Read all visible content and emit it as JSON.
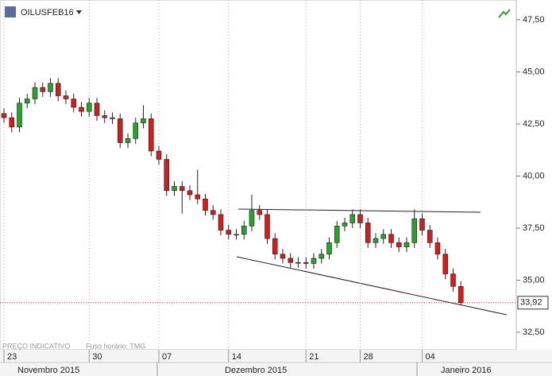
{
  "chart_data": {
    "type": "candlestick",
    "title": "OILUSFEB16",
    "footer": "PREÇO INDICATIVO",
    "timezone": "Fuso horário: TMG",
    "categories": [
      "23",
      null,
      null,
      null,
      null,
      null,
      null,
      null,
      null,
      null,
      null,
      "30",
      null,
      null,
      null,
      null,
      null,
      null,
      null,
      null,
      "07",
      null,
      null,
      null,
      null,
      null,
      null,
      null,
      null,
      "14",
      null,
      null,
      null,
      null,
      null,
      null,
      null,
      null,
      null,
      "21",
      null,
      null,
      null,
      null,
      null,
      null,
      "28",
      null,
      null,
      null,
      null,
      null,
      null,
      null,
      "04",
      null,
      null,
      null,
      null,
      null
    ],
    "months": [
      "Novembro 2015",
      "Dezembro 2015",
      "Janeiro 2016"
    ],
    "open": [
      43.0,
      42.8,
      42.35,
      43.5,
      43.7,
      44.25,
      44.05,
      44.45,
      43.85,
      43.7,
      43.3,
      43.1,
      43.5,
      42.9,
      42.8,
      42.75,
      41.6,
      41.8,
      42.55,
      42.75,
      41.2,
      40.8,
      39.3,
      39.5,
      39.3,
      39.1,
      38.9,
      38.35,
      38.15,
      37.4,
      37.2,
      37.2,
      37.6,
      38.35,
      38.15,
      37.0,
      36.25,
      36.05,
      35.85,
      35.85,
      35.8,
      36.05,
      36.25,
      36.8,
      37.6,
      37.75,
      38.15,
      37.75,
      36.8,
      37.0,
      37.2,
      36.8,
      36.6,
      36.8,
      37.95,
      37.4,
      36.8,
      36.25,
      35.3,
      34.7
    ],
    "high": [
      43.25,
      43.05,
      43.75,
      43.95,
      44.5,
      44.5,
      44.7,
      44.7,
      44.1,
      43.95,
      43.55,
      43.75,
      43.75,
      43.15,
      43.05,
      43.0,
      42.05,
      42.8,
      43.4,
      43.0,
      41.45,
      41.05,
      39.75,
      39.75,
      39.55,
      40.3,
      39.15,
      38.6,
      38.4,
      37.65,
      37.45,
      37.85,
      39.1,
      38.6,
      38.4,
      37.25,
      36.5,
      36.3,
      36.1,
      36.1,
      36.3,
      36.5,
      37.05,
      37.85,
      38.0,
      38.4,
      38.4,
      38.0,
      37.25,
      37.45,
      37.45,
      37.05,
      37.05,
      38.4,
      38.2,
      37.65,
      37.05,
      36.5,
      35.55,
      34.95
    ],
    "low": [
      42.55,
      42.1,
      42.1,
      43.25,
      43.45,
      43.8,
      43.8,
      43.6,
      43.45,
      43.05,
      42.85,
      42.85,
      42.65,
      42.55,
      42.5,
      41.35,
      41.35,
      41.55,
      42.3,
      40.95,
      40.55,
      39.05,
      39.05,
      38.2,
      38.85,
      38.65,
      38.1,
      37.9,
      37.15,
      36.95,
      36.95,
      36.95,
      37.35,
      37.9,
      36.75,
      36.0,
      35.8,
      35.6,
      35.6,
      35.55,
      35.55,
      35.8,
      36.0,
      36.55,
      37.35,
      37.5,
      37.5,
      36.55,
      36.55,
      36.75,
      36.55,
      36.35,
      36.35,
      36.55,
      37.15,
      36.55,
      36.0,
      35.05,
      34.45,
      33.8
    ],
    "close": [
      42.8,
      42.35,
      43.5,
      43.7,
      44.25,
      44.05,
      44.45,
      43.85,
      43.7,
      43.3,
      43.1,
      43.5,
      42.9,
      42.8,
      42.75,
      41.6,
      41.8,
      42.55,
      42.75,
      41.2,
      40.8,
      39.3,
      39.5,
      39.3,
      39.1,
      38.9,
      38.35,
      38.15,
      37.4,
      37.2,
      37.2,
      37.6,
      38.35,
      38.15,
      37.0,
      36.25,
      36.05,
      35.85,
      35.85,
      35.8,
      36.05,
      36.25,
      36.8,
      37.6,
      37.75,
      38.15,
      37.75,
      36.8,
      37.0,
      37.2,
      36.8,
      36.6,
      36.8,
      37.95,
      37.4,
      36.8,
      36.25,
      35.3,
      34.7,
      33.92
    ],
    "up_color": "#2e9e2e",
    "down_color": "#cc1f1f",
    "last_price": {
      "value": 33.92,
      "label": "33,92"
    },
    "ylim": [
      31.66,
      48.45
    ],
    "yticks": [
      {
        "value": 32.5,
        "label": "32,50"
      },
      {
        "value": 35,
        "label": "35,00"
      },
      {
        "value": 37.5,
        "label": "37,50"
      },
      {
        "value": 40,
        "label": "40,00"
      },
      {
        "value": 42.5,
        "label": "42,50"
      },
      {
        "value": 45,
        "label": "45,00"
      },
      {
        "value": 47.5,
        "label": "47,50"
      }
    ]
  }
}
